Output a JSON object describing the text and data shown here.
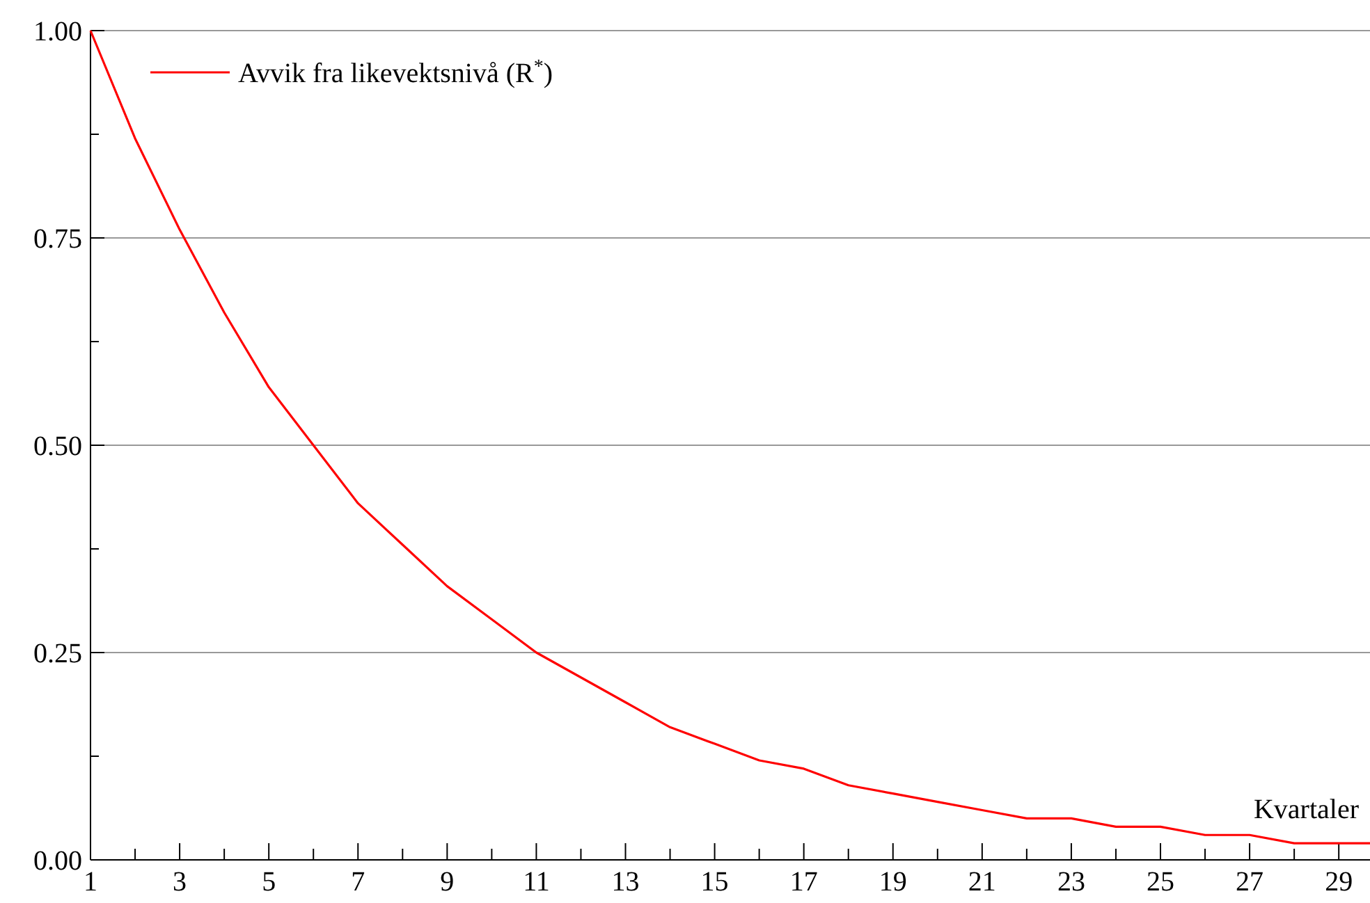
{
  "chart_data": {
    "type": "line",
    "xlabel": "Kvartaler",
    "x": [
      1,
      2,
      3,
      4,
      5,
      6,
      7,
      8,
      9,
      10,
      11,
      12,
      13,
      14,
      15,
      16,
      17,
      18,
      19,
      20,
      21,
      22,
      23,
      24,
      25,
      26,
      27,
      28,
      29,
      29.7
    ],
    "series": [
      {
        "name": "Avvik fra likevektsnivå (R$^{*}$)",
        "color": "#ff0000",
        "values": [
          1,
          0.87,
          0.76,
          0.66,
          0.57,
          0.5,
          0.43,
          0.38,
          0.33,
          0.29,
          0.25,
          0.22,
          0.19,
          0.16,
          0.14,
          0.12,
          0.11,
          0.09,
          0.08,
          0.07,
          0.06,
          0.05,
          0.05,
          0.04,
          0.04,
          0.03,
          0.03,
          0.02,
          0.02,
          0.02
        ]
      }
    ],
    "xlim": [
      1,
      29.7
    ],
    "xticks": [
      1,
      {
        "value": 2,
        "label": null
      },
      3,
      {
        "value": 4,
        "label": null
      },
      5,
      {
        "value": 6,
        "label": null
      },
      7,
      {
        "value": 8,
        "label": null
      },
      9,
      {
        "value": 10,
        "label": null
      },
      11,
      {
        "value": 12,
        "label": null
      },
      13,
      {
        "value": 14,
        "label": null
      },
      15,
      {
        "value": 16,
        "label": null
      },
      17,
      {
        "value": 18,
        "label": null
      },
      19,
      {
        "value": 20,
        "label": null
      },
      21,
      {
        "value": 22,
        "label": null
      },
      23,
      {
        "value": 24,
        "label": null
      },
      25,
      {
        "value": 26,
        "label": null
      },
      27,
      {
        "value": 28,
        "label": null
      },
      29
    ],
    "ylim": [
      0,
      1
    ],
    "yticks": [
      {
        "value": 0,
        "label": "0.00"
      },
      {
        "value": 0.125,
        "label": null
      },
      {
        "value": 0.25,
        "label": "0.25"
      },
      {
        "value": 0.375,
        "label": null
      },
      {
        "value": 0.5,
        "label": "0.50"
      },
      {
        "value": 0.625,
        "label": null
      },
      {
        "value": 0.75,
        "label": "0.75"
      },
      {
        "value": 0.875,
        "label": null
      },
      {
        "value": 1,
        "label": "1.00"
      }
    ],
    "grid": "y",
    "legend": "top left",
    "marker": "none",
    "line_style": "solid"
  }
}
